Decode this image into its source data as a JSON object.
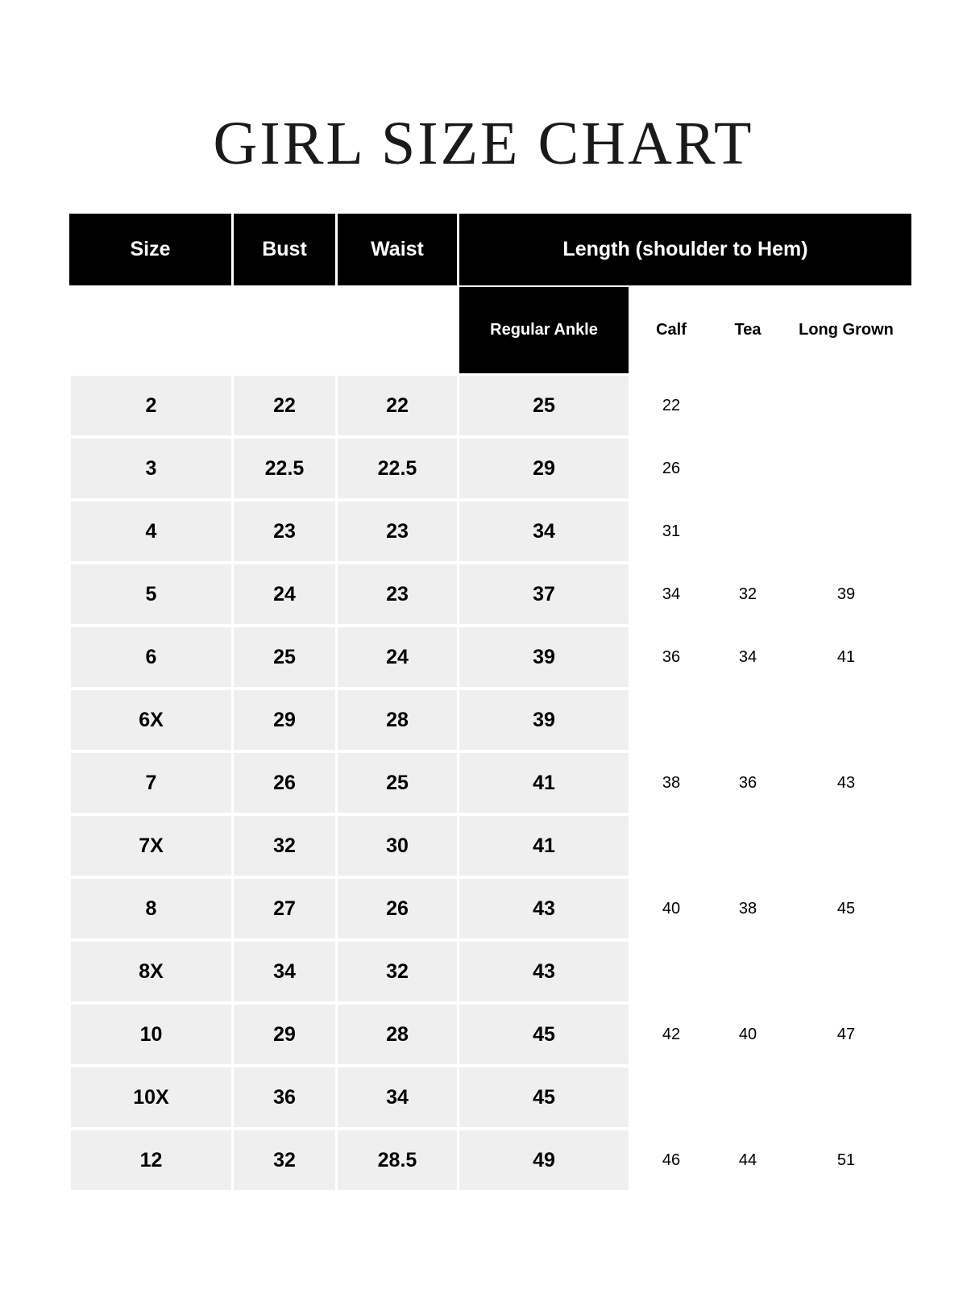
{
  "title": "GIRL SIZE CHART",
  "headers": {
    "size": "Size",
    "bust": "Bust",
    "waist": "Waist",
    "length": "Length (shoulder to Hem)"
  },
  "subheaders": {
    "regular_ankle": "Regular Ankle",
    "calf": "Calf",
    "tea": "Tea",
    "long_grown": "Long Grown"
  },
  "rows": [
    {
      "size": "2",
      "bust": "22",
      "waist": "22",
      "ankle": "25",
      "calf": "22",
      "tea": "",
      "long": ""
    },
    {
      "size": "3",
      "bust": "22.5",
      "waist": "22.5",
      "ankle": "29",
      "calf": "26",
      "tea": "",
      "long": ""
    },
    {
      "size": "4",
      "bust": "23",
      "waist": "23",
      "ankle": "34",
      "calf": "31",
      "tea": "",
      "long": ""
    },
    {
      "size": "5",
      "bust": "24",
      "waist": "23",
      "ankle": "37",
      "calf": "34",
      "tea": "32",
      "long": "39"
    },
    {
      "size": "6",
      "bust": "25",
      "waist": "24",
      "ankle": "39",
      "calf": "36",
      "tea": "34",
      "long": "41"
    },
    {
      "size": "6X",
      "bust": "29",
      "waist": "28",
      "ankle": "39",
      "calf": "",
      "tea": "",
      "long": ""
    },
    {
      "size": "7",
      "bust": "26",
      "waist": "25",
      "ankle": "41",
      "calf": "38",
      "tea": "36",
      "long": "43"
    },
    {
      "size": "7X",
      "bust": "32",
      "waist": "30",
      "ankle": "41",
      "calf": "",
      "tea": "",
      "long": ""
    },
    {
      "size": "8",
      "bust": "27",
      "waist": "26",
      "ankle": "43",
      "calf": "40",
      "tea": "38",
      "long": "45"
    },
    {
      "size": "8X",
      "bust": "34",
      "waist": "32",
      "ankle": "43",
      "calf": "",
      "tea": "",
      "long": ""
    },
    {
      "size": "10",
      "bust": "29",
      "waist": "28",
      "ankle": "45",
      "calf": "42",
      "tea": "40",
      "long": "47"
    },
    {
      "size": "10X",
      "bust": "36",
      "waist": "34",
      "ankle": "45",
      "calf": "",
      "tea": "",
      "long": ""
    },
    {
      "size": "12",
      "bust": "32",
      "waist": "28.5",
      "ankle": "49",
      "calf": "46",
      "tea": "44",
      "long": "51"
    }
  ],
  "colors": {
    "header_bg": "#000000",
    "cell_bg": "#efefef"
  }
}
